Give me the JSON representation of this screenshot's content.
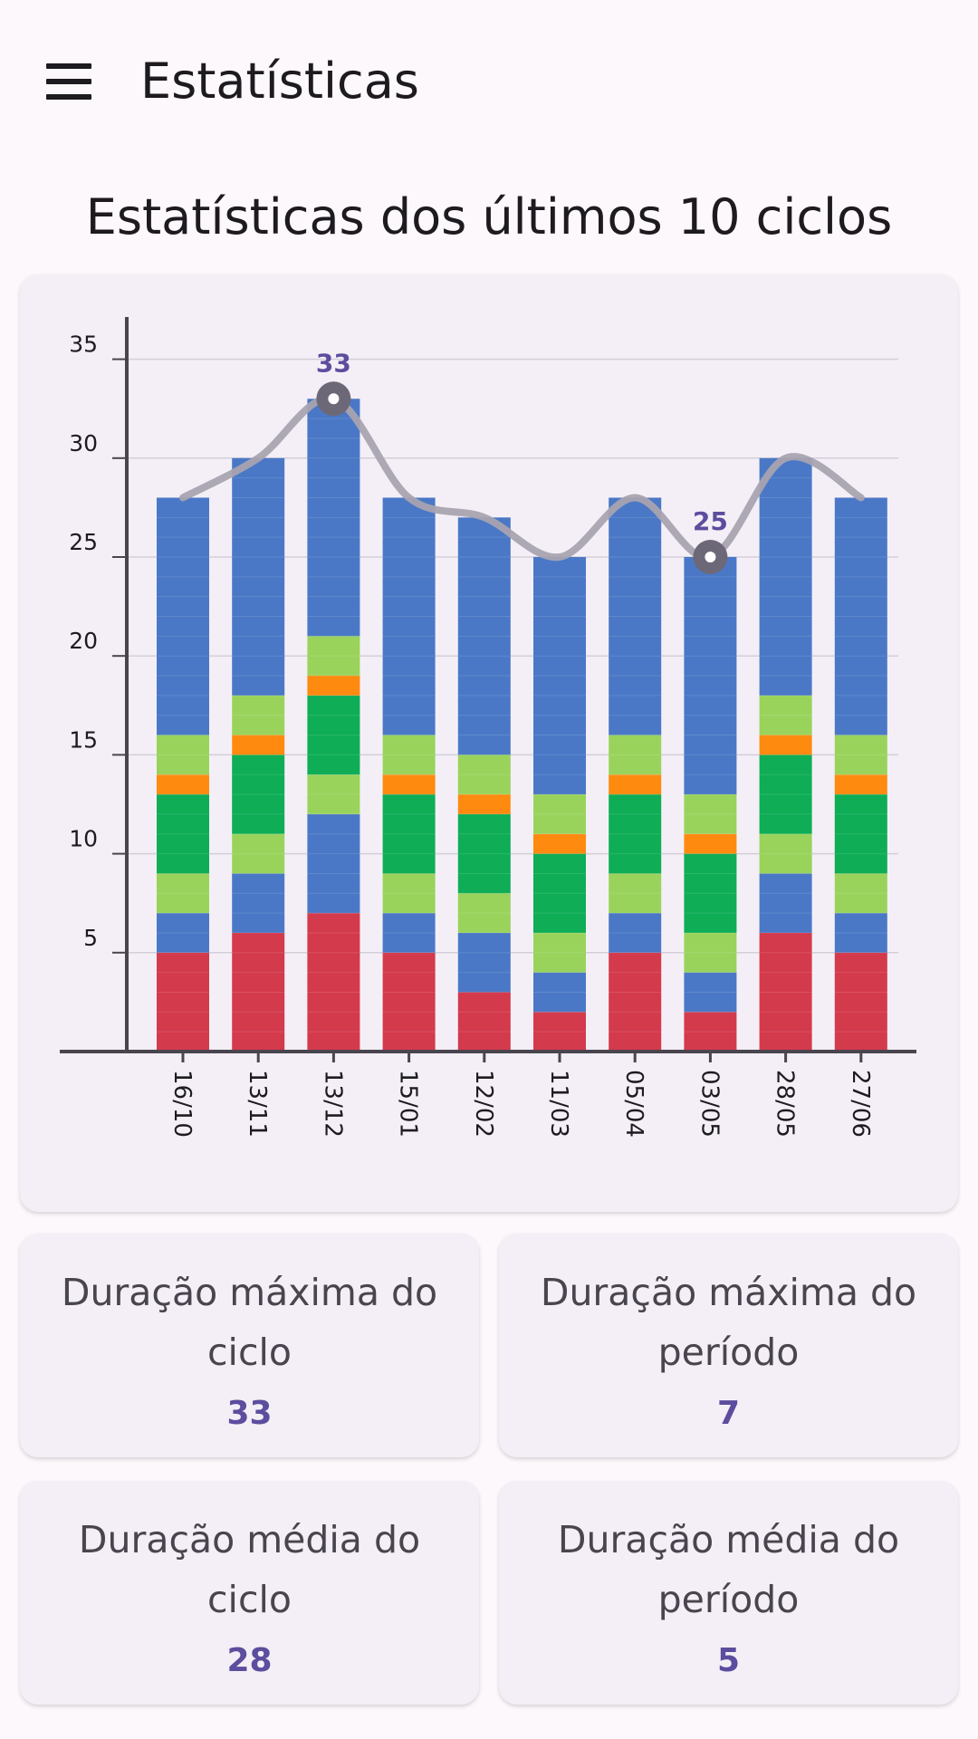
{
  "app_bar": {
    "title": "Estatísticas",
    "menu_icon": "menu-icon"
  },
  "section_title": "Estatísticas dos últimos 10 ciclos",
  "colors": {
    "period": "#d33a4c",
    "blue": "#4a78c6",
    "light_green": "#99d35c",
    "dark_green": "#0ead56",
    "orange": "#ff8a10",
    "trend_line": "#a8a3b0",
    "marker": "#6d6878",
    "highlight_text": "#5c4d9e"
  },
  "chart_data": {
    "type": "bar",
    "stacked": true,
    "categories": [
      "16/10",
      "13/11",
      "13/12",
      "15/01",
      "12/02",
      "11/03",
      "05/04",
      "03/05",
      "28/05",
      "27/06"
    ],
    "series": [
      {
        "color": "#d33a4c",
        "values": [
          5,
          6,
          7,
          5,
          3,
          2,
          5,
          2,
          6,
          5
        ]
      },
      {
        "color": "#4a78c6",
        "values": [
          2,
          3,
          5,
          2,
          3,
          2,
          2,
          2,
          3,
          2
        ]
      },
      {
        "color": "#99d35c",
        "values": [
          2,
          2,
          0,
          2,
          2,
          2,
          2,
          2,
          2,
          2
        ]
      },
      {
        "color": "#0ead56",
        "values": [
          4,
          4,
          0,
          4,
          4,
          4,
          4,
          4,
          4,
          4
        ]
      },
      {
        "color": "#99d35c",
        "values": [
          0,
          0,
          2,
          0,
          0,
          0,
          0,
          0,
          0,
          0
        ]
      },
      {
        "color": "#0ead56",
        "values": [
          0,
          0,
          4,
          0,
          0,
          0,
          0,
          0,
          0,
          0
        ]
      },
      {
        "color": "#ff8a10",
        "values": [
          1,
          1,
          1,
          1,
          1,
          1,
          1,
          1,
          1,
          1
        ]
      },
      {
        "color": "#99d35c",
        "values": [
          2,
          2,
          2,
          2,
          2,
          2,
          2,
          2,
          2,
          2
        ]
      },
      {
        "color": "#4a78c6",
        "values": [
          12,
          12,
          12,
          12,
          12,
          12,
          12,
          12,
          12,
          12
        ]
      }
    ],
    "totals": [
      28,
      30,
      33,
      28,
      27,
      25,
      28,
      25,
      30,
      28
    ],
    "y_ticks": [
      5,
      10,
      15,
      20,
      25,
      30,
      35
    ],
    "ylim": [
      0,
      37
    ],
    "grid": true,
    "annotations": [
      {
        "category": "13/12",
        "value": 33,
        "label": "33"
      },
      {
        "category": "03/05",
        "value": 25,
        "label": "25"
      }
    ]
  },
  "stats": [
    {
      "label": "Duração máxima do ciclo",
      "value": "33"
    },
    {
      "label": "Duração máxima do período",
      "value": "7"
    },
    {
      "label": "Duração média do ciclo",
      "value": "28"
    },
    {
      "label": "Duração média do período",
      "value": "5"
    }
  ]
}
